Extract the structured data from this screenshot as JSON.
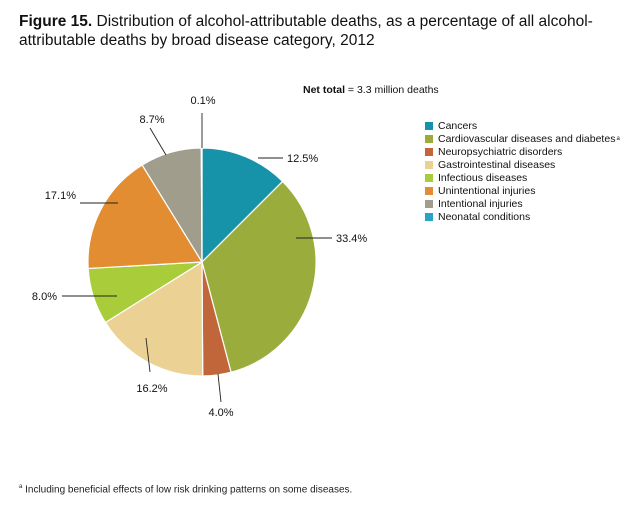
{
  "header": {
    "figure_label": "Figure 15.",
    "title": "Distribution of alcohol-attributable deaths, as a percentage of all alcohol-attributable deaths by broad disease category, 2012"
  },
  "net_total": {
    "label": "Net total",
    "value": "= 3.3 million deaths"
  },
  "footnote": {
    "marker": "a",
    "text": "Including beneficial effects of low risk drinking patterns on some diseases."
  },
  "chart_data": {
    "type": "pie",
    "title": "Distribution of alcohol-attributable deaths, as a percentage of all alcohol-attributable deaths by broad disease category, 2012",
    "legend_position": "right",
    "start_angle": "12 o'clock, clockwise",
    "slices": [
      {
        "name": "Cancers",
        "value": 12.5,
        "label": "12.5%",
        "color": "#1693a8"
      },
      {
        "name": "Cardiovascular diseases and diabetes",
        "footnote_marker": "a",
        "value": 33.4,
        "label": "33.4%",
        "color": "#9aad3c"
      },
      {
        "name": "Neuropsychiatric disorders",
        "value": 4.0,
        "label": "4.0%",
        "color": "#c0663a"
      },
      {
        "name": "Gastrointestinal diseases",
        "value": 16.2,
        "label": "16.2%",
        "color": "#ebd194"
      },
      {
        "name": "Infectious diseases",
        "value": 8.0,
        "label": "8.0%",
        "color": "#a9cc3a"
      },
      {
        "name": "Unintentional injuries",
        "value": 17.1,
        "label": "17.1%",
        "color": "#e28d31"
      },
      {
        "name": "Intentional injuries",
        "value": 8.7,
        "label": "8.7%",
        "color": "#a09d8c"
      },
      {
        "name": "Neonatal conditions",
        "value": 0.1,
        "label": "0.1%",
        "color": "#2aa4c4"
      }
    ]
  }
}
